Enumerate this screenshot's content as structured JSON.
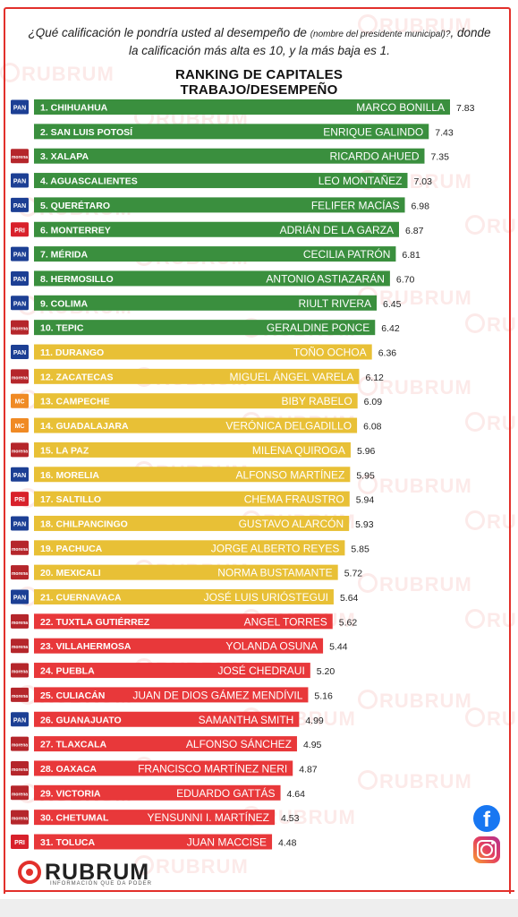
{
  "header": {
    "question_main": "¿Qué calificación le pondría usted al desempeño de",
    "question_small": "(nombre del presidente municipal)?",
    "question_rest": ", donde la calificación más alta es 10, y la más baja es 1.",
    "title_line1": "RANKING DE CAPITALES",
    "title_line2": "TRABAJO/DESEMPEÑO"
  },
  "watermark": {
    "text": "RUBRUM"
  },
  "colors": {
    "green": "#3a8f3e",
    "yellow": "#e8c036",
    "red": "#e8383a",
    "accent": "#e2302b"
  },
  "party_badges": {
    "PAN": {
      "text": "PAN",
      "color": "#1c3f94"
    },
    "MORENA": {
      "text": "morena",
      "color": "#b5262b"
    },
    "PRI": {
      "text": "PRI",
      "color": "#d8212b"
    },
    "MC": {
      "text": "MC",
      "color": "#f08a24"
    }
  },
  "chart_data": {
    "type": "bar",
    "title": "RANKING DE CAPITALES TRABAJO/DESEMPEÑO",
    "rows": [
      {
        "rank_city": "1. CHIHUAHUA",
        "name": "MARCO BONILLA",
        "value": 7.83,
        "party": "PAN",
        "group": "green"
      },
      {
        "rank_city": "2. SAN LUIS POTOSÍ",
        "name": "ENRIQUE GALINDO",
        "value": 7.43,
        "party": "",
        "group": "green"
      },
      {
        "rank_city": "3. XALAPA",
        "name": "RICARDO AHUED",
        "value": 7.35,
        "party": "MORENA",
        "group": "green"
      },
      {
        "rank_city": "4. AGUASCALIENTES",
        "name": "LEO MONTAÑEZ",
        "value": 7.03,
        "party": "PAN",
        "group": "green"
      },
      {
        "rank_city": "5. QUERÉTARO",
        "name": "FELIFER MACÍAS",
        "value": 6.98,
        "party": "PAN",
        "group": "green"
      },
      {
        "rank_city": "6. MONTERREY",
        "name": "ADRIÁN DE LA GARZA",
        "value": 6.87,
        "party": "PRI",
        "group": "green"
      },
      {
        "rank_city": "7. MÉRIDA",
        "name": "CECILIA PATRÓN",
        "value": 6.81,
        "party": "PAN",
        "group": "green"
      },
      {
        "rank_city": "8. HERMOSILLO",
        "name": "ANTONIO ASTIAZARÁN",
        "value": 6.7,
        "party": "PAN",
        "group": "green"
      },
      {
        "rank_city": "9. COLIMA",
        "name": "RIULT RIVERA",
        "value": 6.45,
        "party": "PAN",
        "group": "green"
      },
      {
        "rank_city": "10. TEPIC",
        "name": "GERALDINE PONCE",
        "value": 6.42,
        "party": "MORENA",
        "group": "green"
      },
      {
        "rank_city": "11. DURANGO",
        "name": "TOÑO OCHOA",
        "value": 6.36,
        "party": "PAN",
        "group": "yellow"
      },
      {
        "rank_city": "12. ZACATECAS",
        "name": "MIGUEL ÁNGEL VARELA",
        "value": 6.12,
        "party": "MORENA",
        "group": "yellow"
      },
      {
        "rank_city": "13. CAMPECHE",
        "name": "BIBY RABELO",
        "value": 6.09,
        "party": "MC",
        "group": "yellow"
      },
      {
        "rank_city": "14. GUADALAJARA",
        "name": "VERÓNICA DELGADILLO",
        "value": 6.08,
        "party": "MC",
        "group": "yellow"
      },
      {
        "rank_city": "15. LA PAZ",
        "name": "MILENA QUIROGA",
        "value": 5.96,
        "party": "MORENA",
        "group": "yellow"
      },
      {
        "rank_city": "16. MORELIA",
        "name": "ALFONSO MARTÍNEZ",
        "value": 5.95,
        "party": "PAN",
        "group": "yellow"
      },
      {
        "rank_city": "17. SALTILLO",
        "name": "CHEMA FRAUSTRO",
        "value": 5.94,
        "party": "PRI",
        "group": "yellow"
      },
      {
        "rank_city": "18. CHILPANCINGO",
        "name": "GUSTAVO ALARCÓN",
        "value": 5.93,
        "party": "PAN",
        "group": "yellow"
      },
      {
        "rank_city": "19. PACHUCA",
        "name": "JORGE ALBERTO REYES",
        "value": 5.85,
        "party": "MORENA",
        "group": "yellow"
      },
      {
        "rank_city": "20. MEXICALI",
        "name": "NORMA BUSTAMANTE",
        "value": 5.72,
        "party": "MORENA",
        "group": "yellow"
      },
      {
        "rank_city": "21. CUERNAVACA",
        "name": "JOSÉ LUIS URIÓSTEGUI",
        "value": 5.64,
        "party": "PAN",
        "group": "yellow"
      },
      {
        "rank_city": "22. TUXTLA GUTIÉRREZ",
        "name": "ANGEL TORRES",
        "value": 5.62,
        "party": "MORENA",
        "group": "red"
      },
      {
        "rank_city": "23. VILLAHERMOSA",
        "name": "YOLANDA OSUNA",
        "value": 5.44,
        "party": "MORENA",
        "group": "red"
      },
      {
        "rank_city": "24. PUEBLA",
        "name": "JOSÉ CHEDRAUI",
        "value": 5.2,
        "party": "MORENA",
        "group": "red"
      },
      {
        "rank_city": "25. CULIACÁN",
        "name": "JUAN DE DIOS GÁMEZ MENDÍVIL",
        "value": 5.16,
        "party": "MORENA",
        "group": "red"
      },
      {
        "rank_city": "26. GUANAJUATO",
        "name": "SAMANTHA SMITH",
        "value": 4.99,
        "party": "PAN",
        "group": "red"
      },
      {
        "rank_city": "27. TLAXCALA",
        "name": "ALFONSO SÁNCHEZ",
        "value": 4.95,
        "party": "MORENA",
        "group": "red"
      },
      {
        "rank_city": "28. OAXACA",
        "name": "FRANCISCO MARTÍNEZ NERI",
        "value": 4.87,
        "party": "MORENA",
        "group": "red"
      },
      {
        "rank_city": "29. VICTORIA",
        "name": "EDUARDO GATTÁS",
        "value": 4.64,
        "party": "MORENA",
        "group": "red"
      },
      {
        "rank_city": "30. CHETUMAL",
        "name": "YENSUNNI I. MARTÍNEZ",
        "value": 4.53,
        "party": "MORENA",
        "group": "red"
      },
      {
        "rank_city": "31. TOLUCA",
        "name": "JUAN MACCISE",
        "value": 4.48,
        "party": "PRI",
        "group": "red"
      }
    ]
  },
  "social": {
    "facebook_icon": "facebook-icon",
    "facebook_glyph": "f",
    "instagram_icon": "instagram-icon"
  },
  "brand": {
    "name": "RUBRUM",
    "tagline": "INFORMACIÓN QUE DA PODER"
  }
}
